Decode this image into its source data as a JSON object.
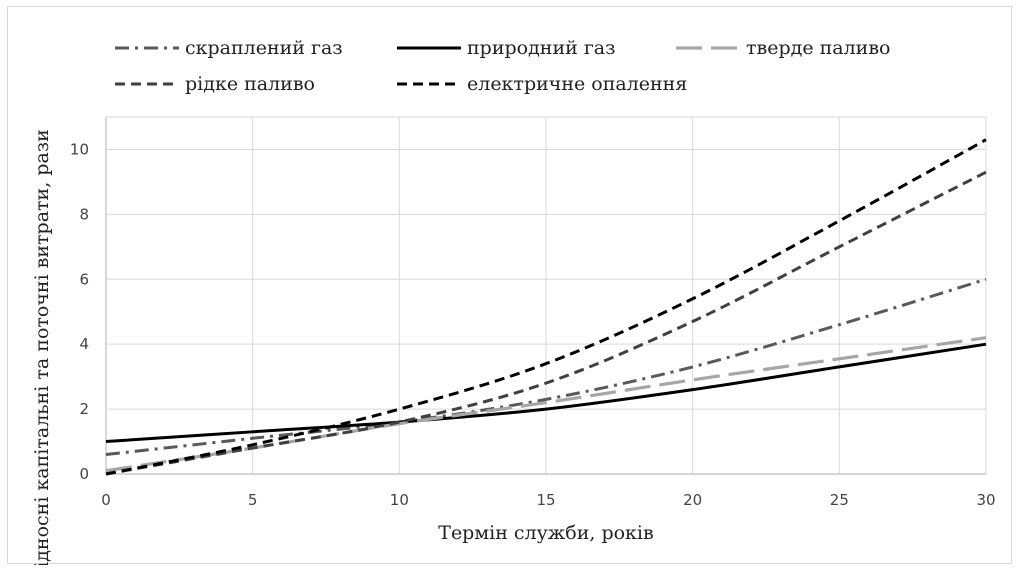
{
  "chart_data": {
    "type": "line",
    "title": "",
    "xlabel": "Термін служби, років",
    "ylabel": "Відносні капітальні та поточні витрати, рази",
    "xlim": [
      0,
      30
    ],
    "ylim": [
      0,
      11
    ],
    "x_ticks": [
      "0",
      "5",
      "10",
      "15",
      "20",
      "25",
      "30"
    ],
    "y_ticks": [
      "0",
      "2",
      "4",
      "6",
      "8",
      "10"
    ],
    "x_tick_values": [
      0,
      5,
      10,
      15,
      20,
      25,
      30
    ],
    "y_tick_values": [
      0,
      2,
      4,
      6,
      8,
      10
    ],
    "grid": true,
    "legend_position": "top",
    "series": [
      {
        "name": "скраплений газ",
        "style": "dash-dot",
        "color": "#595959",
        "x": [
          0,
          5,
          10,
          15,
          20,
          25,
          30
        ],
        "y": [
          0.6,
          1.1,
          1.6,
          2.3,
          3.3,
          4.6,
          6.0
        ]
      },
      {
        "name": "природний газ",
        "style": "solid",
        "color": "#000000",
        "x": [
          0,
          5,
          10,
          15,
          20,
          25,
          30
        ],
        "y": [
          1.0,
          1.3,
          1.6,
          2.0,
          2.6,
          3.3,
          4.0
        ]
      },
      {
        "name": "тверде паливо",
        "style": "long-dash",
        "color": "#a6a6a6",
        "x": [
          0,
          5,
          10,
          15,
          20,
          25,
          30
        ],
        "y": [
          0.1,
          0.8,
          1.55,
          2.2,
          2.9,
          3.55,
          4.2
        ]
      },
      {
        "name": "рідке паливо",
        "style": "dash",
        "color": "#404040",
        "x": [
          0,
          5,
          10,
          15,
          20,
          25,
          30
        ],
        "y": [
          0.0,
          0.8,
          1.6,
          2.8,
          4.7,
          7.0,
          9.3
        ]
      },
      {
        "name": "електричне опалення",
        "style": "dash",
        "color": "#000000",
        "x": [
          0,
          5,
          10,
          15,
          20,
          25,
          30
        ],
        "y": [
          0.0,
          0.9,
          2.0,
          3.4,
          5.4,
          7.8,
          10.3
        ]
      }
    ]
  }
}
